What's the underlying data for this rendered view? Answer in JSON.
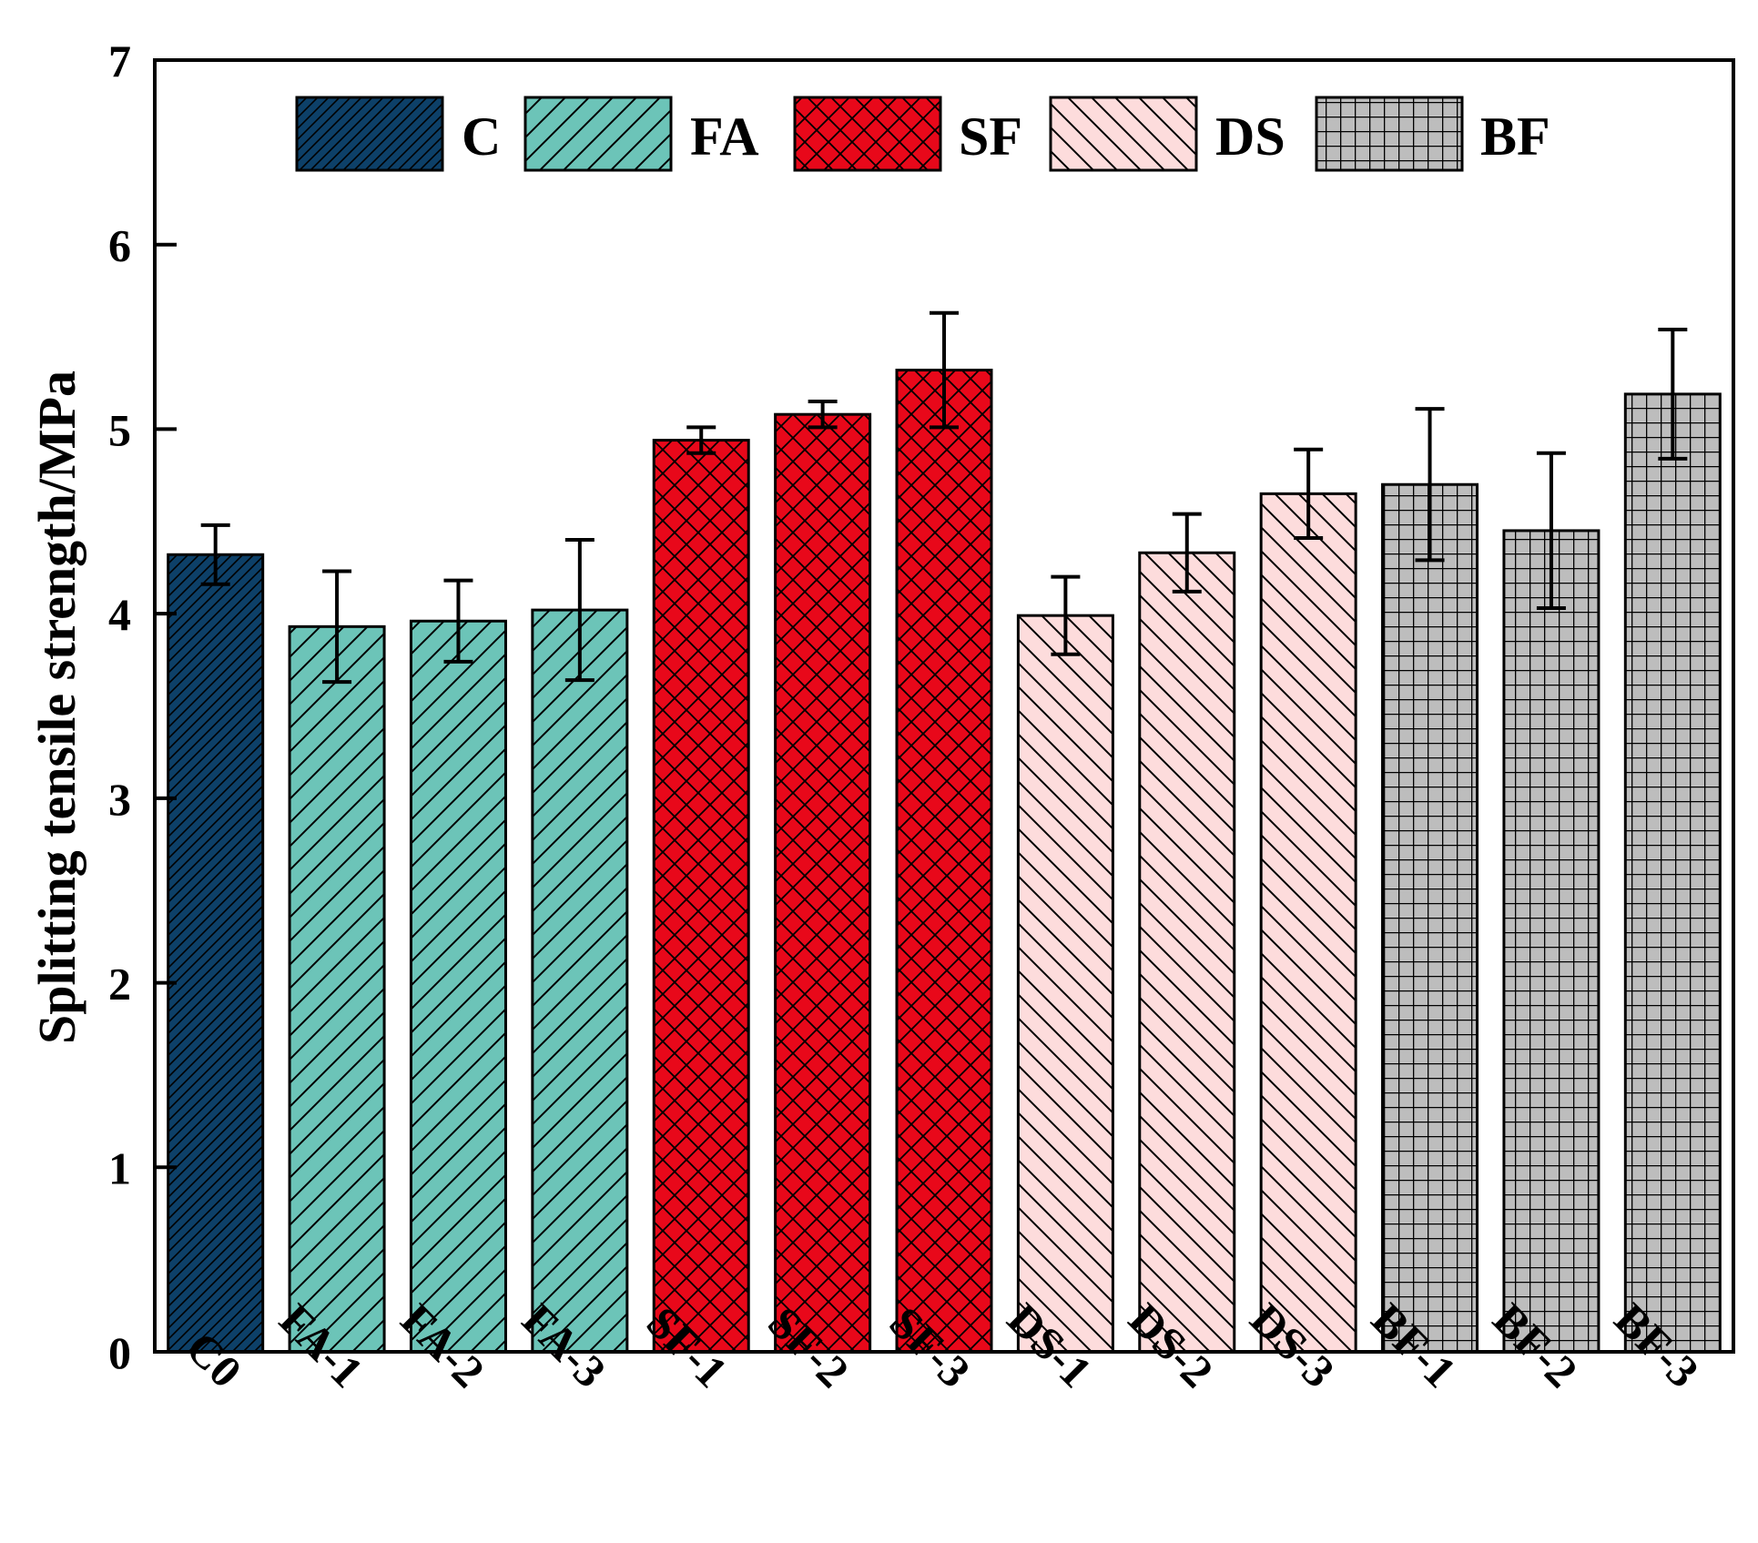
{
  "chart_data": {
    "type": "bar",
    "title": "",
    "xlabel": "",
    "ylabel": "Splitting tensile strength/MPa",
    "ylim": [
      0,
      7
    ],
    "yticks": [
      "0",
      "1",
      "2",
      "3",
      "4",
      "5",
      "6",
      "7"
    ],
    "grid": false,
    "legend_position": "top",
    "groups": [
      {
        "name": "C",
        "color": "#0d4068",
        "pattern": "dense-diagonal"
      },
      {
        "name": "FA",
        "color": "#6cc4b8",
        "pattern": "diagonal"
      },
      {
        "name": "SF",
        "color": "#e8081a",
        "pattern": "crosshatch"
      },
      {
        "name": "DS",
        "color": "#fddcdc",
        "pattern": "back-diagonal"
      },
      {
        "name": "BF",
        "color": "#bdbdbd",
        "pattern": "grid"
      }
    ],
    "categories": [
      "C0",
      "FA-1",
      "FA-2",
      "FA-3",
      "SF-1",
      "SF-2",
      "SF-3",
      "DS-1",
      "DS-2",
      "DS-3",
      "BF-1",
      "BF-2",
      "BF-3"
    ],
    "values": [
      4.32,
      3.93,
      3.96,
      4.02,
      4.94,
      5.08,
      5.32,
      3.99,
      4.33,
      4.65,
      4.7,
      4.45,
      5.19
    ],
    "errors": [
      0.16,
      0.3,
      0.22,
      0.38,
      0.07,
      0.07,
      0.31,
      0.21,
      0.21,
      0.24,
      0.41,
      0.42,
      0.35
    ],
    "group_of": [
      0,
      1,
      1,
      1,
      2,
      2,
      2,
      3,
      3,
      3,
      4,
      4,
      4
    ]
  }
}
